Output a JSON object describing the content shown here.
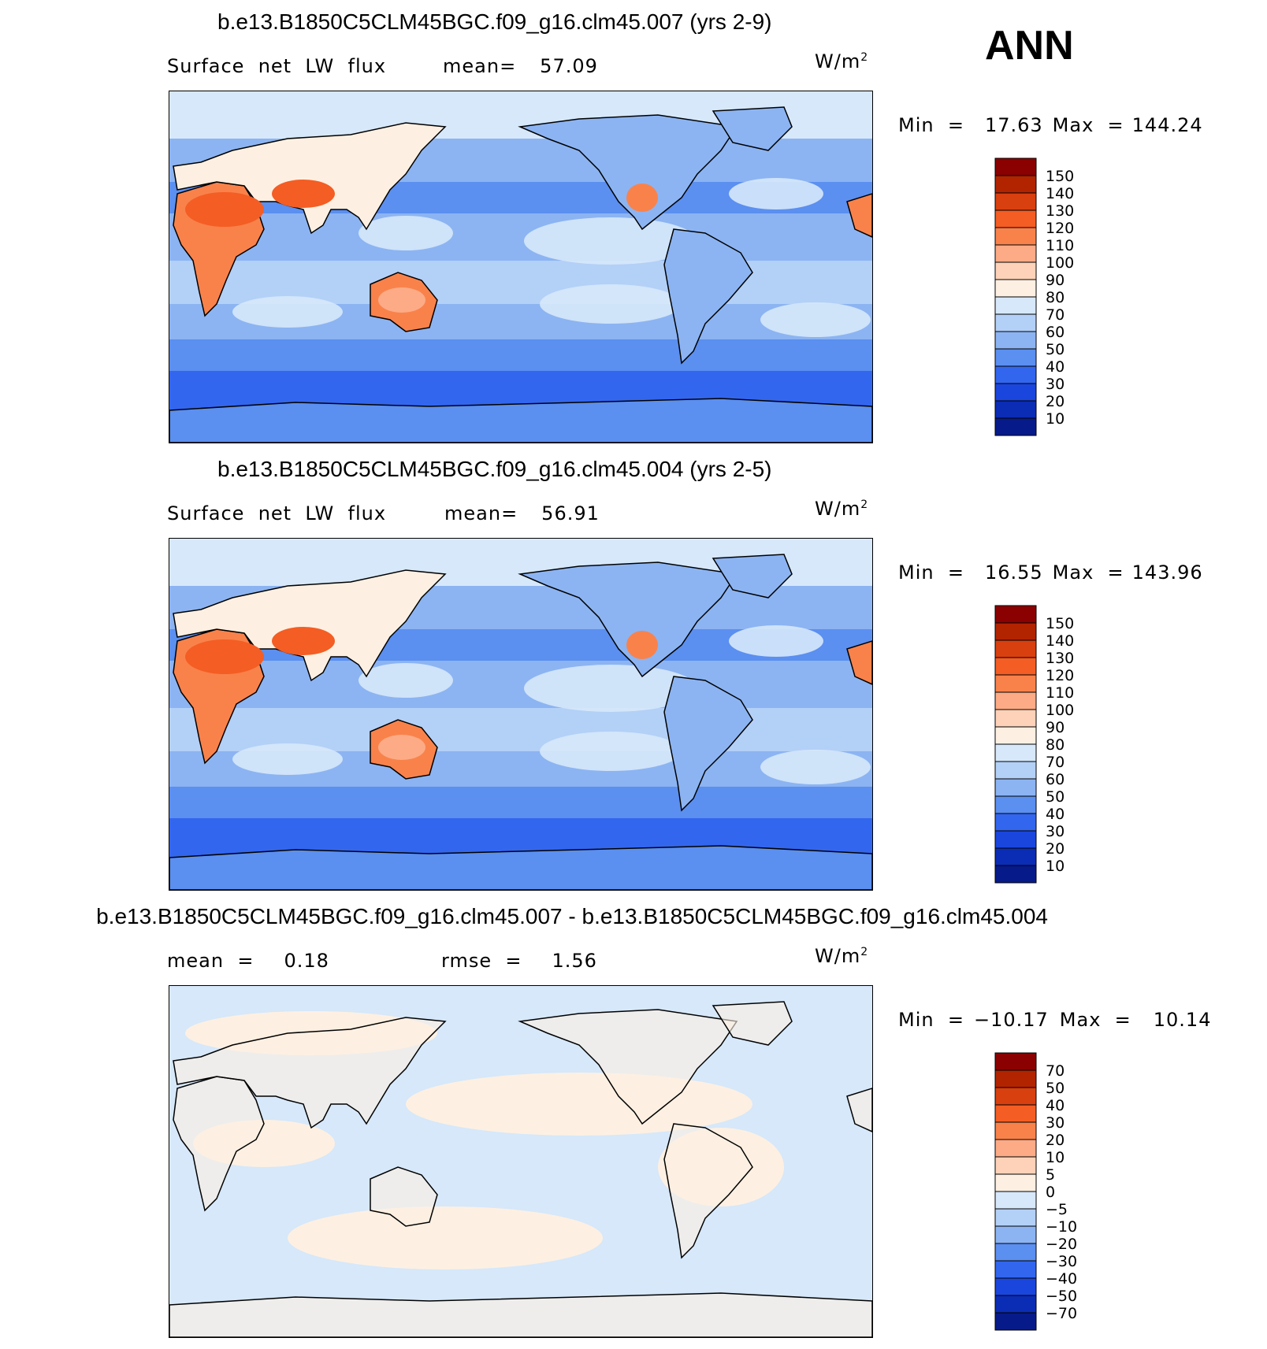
{
  "page": {
    "season": "ANN",
    "units": "W/m",
    "units_sup": "2"
  },
  "panels": [
    {
      "title": "b.e13.B1850C5CLM45BGC.f09_g16.clm45.007 (yrs 2-9)",
      "variable": "Surface  net  LW  flux",
      "stat1_label": "mean=",
      "stat1_value": "57.09",
      "stat2_label": "",
      "stat2_value": "",
      "min_label": "Min  =",
      "min_value": "17.63",
      "max_label": "Max  =",
      "max_value": "144.24",
      "palette": "abs"
    },
    {
      "title": "b.e13.B1850C5CLM45BGC.f09_g16.clm45.004 (yrs 2-5)",
      "variable": "Surface  net  LW  flux",
      "stat1_label": "mean=",
      "stat1_value": "56.91",
      "stat2_label": "",
      "stat2_value": "",
      "min_label": "Min  =",
      "min_value": "16.55",
      "max_label": "Max  =",
      "max_value": "143.96",
      "palette": "abs"
    },
    {
      "title": "b.e13.B1850C5CLM45BGC.f09_g16.clm45.007 - b.e13.B1850C5CLM45BGC.f09_g16.clm45.004",
      "variable": "",
      "stat1_label": "mean  =",
      "stat1_value": "0.18",
      "stat2_label": "rmse  =",
      "stat2_value": "1.56",
      "min_label": "Min  =",
      "min_value": "−10.17",
      "max_label": "Max  =",
      "max_value": "10.14",
      "palette": "diff"
    }
  ],
  "colorbars": {
    "abs": {
      "levels": [
        "150",
        "140",
        "130",
        "120",
        "110",
        "100",
        "90",
        "80",
        "70",
        "60",
        "50",
        "40",
        "30",
        "20",
        "10"
      ],
      "colors": [
        "#8b0000",
        "#b22400",
        "#d9400f",
        "#f45d23",
        "#f9824b",
        "#fcab86",
        "#fdd2b8",
        "#fdf0e2",
        "#d6e8fa",
        "#b3d0f7",
        "#8cb4f2",
        "#5b8ff0",
        "#3366ef",
        "#1a46de",
        "#0b2cb5",
        "#071a8a"
      ]
    },
    "diff": {
      "levels": [
        "70",
        "50",
        "40",
        "30",
        "20",
        "10",
        "5",
        "0",
        "−5",
        "−10",
        "−20",
        "−30",
        "−40",
        "−50",
        "−70"
      ],
      "colors": [
        "#8b0000",
        "#b22400",
        "#d9400f",
        "#f45d23",
        "#f9824b",
        "#fcab86",
        "#fdd2b8",
        "#fdf0e2",
        "#d6e8fa",
        "#b3d0f7",
        "#8cb4f2",
        "#5b8ff0",
        "#3366ef",
        "#1a46de",
        "#0b2cb5",
        "#071a8a"
      ]
    }
  },
  "chart_data": [
    {
      "type": "heatmap",
      "title": "b.e13.B1850C5CLM45BGC.f09_g16.clm45.007 (yrs 2-9)",
      "variable": "Surface net LW flux",
      "units": "W/m2",
      "mean": 57.09,
      "min": 17.63,
      "max": 144.24,
      "contour_levels": [
        10,
        20,
        30,
        40,
        50,
        60,
        70,
        80,
        90,
        100,
        110,
        120,
        130,
        140,
        150
      ]
    },
    {
      "type": "heatmap",
      "title": "b.e13.B1850C5CLM45BGC.f09_g16.clm45.004 (yrs 2-5)",
      "variable": "Surface net LW flux",
      "units": "W/m2",
      "mean": 56.91,
      "min": 16.55,
      "max": 143.96,
      "contour_levels": [
        10,
        20,
        30,
        40,
        50,
        60,
        70,
        80,
        90,
        100,
        110,
        120,
        130,
        140,
        150
      ]
    },
    {
      "type": "heatmap",
      "title": "b.e13.B1850C5CLM45BGC.f09_g16.clm45.007 - b.e13.B1850C5CLM45BGC.f09_g16.clm45.004",
      "units": "W/m2",
      "mean": 0.18,
      "rmse": 1.56,
      "min": -10.17,
      "max": 10.14,
      "contour_levels": [
        -70,
        -50,
        -40,
        -30,
        -20,
        -10,
        -5,
        0,
        5,
        10,
        20,
        30,
        40,
        50,
        70
      ]
    }
  ]
}
